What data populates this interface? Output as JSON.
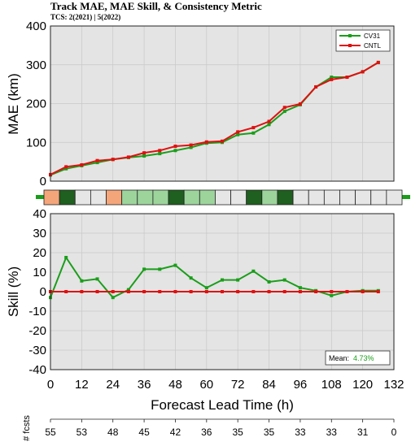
{
  "header": {
    "title": "Track MAE, MAE Skill, & Consistency Metric",
    "subtitle": "TCS: 2(2021) | 5(2022)"
  },
  "colors": {
    "cv31": "#1a9e1a",
    "cntl": "#e01010",
    "panel_bg": "#e4e4e4"
  },
  "chart_data": [
    {
      "type": "line",
      "xlabel": "",
      "ylabel": "MAE (km)",
      "xlim": [
        0,
        132
      ],
      "ylim": [
        0,
        400
      ],
      "yticks": [
        0,
        100,
        200,
        300,
        400
      ],
      "grid": true,
      "legend_position": "top-right",
      "x": [
        0,
        6,
        12,
        18,
        24,
        30,
        36,
        42,
        48,
        54,
        60,
        66,
        72,
        78,
        84,
        90,
        96,
        102,
        108,
        114,
        120,
        126
      ],
      "series": [
        {
          "name": "CV31",
          "values": [
            16,
            32,
            40,
            48,
            56,
            61,
            65,
            71,
            79,
            87,
            98,
            100,
            120,
            124,
            146,
            180,
            197,
            243,
            268,
            268,
            282,
            306
          ]
        },
        {
          "name": "CNTL",
          "values": [
            17,
            37,
            42,
            53,
            56,
            62,
            73,
            79,
            90,
            93,
            101,
            103,
            127,
            138,
            154,
            190,
            199,
            243,
            262,
            268,
            282,
            306
          ]
        }
      ]
    },
    {
      "type": "heatmap",
      "title": "Consistency Metric",
      "cells": [
        "orange",
        "darkgreen",
        "gray",
        "gray",
        "orange",
        "lightgreen",
        "lightgreen",
        "lightgreen",
        "darkgreen",
        "lightgreen",
        "lightgreen",
        "gray",
        "gray",
        "darkgreen",
        "lightgreen",
        "darkgreen",
        "gray",
        "gray",
        "gray",
        "gray",
        "gray",
        "gray",
        "gray"
      ]
    },
    {
      "type": "line",
      "xlabel": "Forecast Lead Time (h)",
      "ylabel": "Skill (%)",
      "xlim": [
        0,
        132
      ],
      "ylim": [
        -40,
        40
      ],
      "xticks": [
        0,
        12,
        24,
        36,
        48,
        60,
        72,
        84,
        96,
        108,
        120,
        132
      ],
      "yticks": [
        -40,
        -30,
        -20,
        -10,
        0,
        10,
        20,
        30,
        40
      ],
      "grid": true,
      "annotation": {
        "label": "Mean:",
        "value": "4.73%"
      },
      "x": [
        0,
        6,
        12,
        18,
        24,
        30,
        36,
        42,
        48,
        54,
        60,
        66,
        72,
        78,
        84,
        90,
        96,
        102,
        108,
        114,
        120,
        126
      ],
      "series": [
        {
          "name": "CV31",
          "values": [
            -3,
            17.5,
            5.5,
            6.5,
            -3,
            1,
            11.5,
            11.5,
            13.5,
            7,
            2,
            6,
            6,
            10.5,
            5,
            6,
            2,
            0.5,
            -2,
            0,
            0.5,
            0.5
          ]
        },
        {
          "name": "CNTL",
          "values": [
            0,
            0,
            0,
            0,
            0,
            0,
            0,
            0,
            0,
            0,
            0,
            0,
            0,
            0,
            0,
            0,
            0,
            0,
            0,
            0,
            0,
            0
          ]
        }
      ],
      "fcsts_label": "# fcsts",
      "fcsts_x": [
        0,
        12,
        24,
        36,
        48,
        60,
        72,
        84,
        96,
        108,
        120,
        132
      ],
      "fcsts_counts": [
        "55",
        "53",
        "48",
        "45",
        "42",
        "36",
        "35",
        "35",
        "33",
        "33",
        "31",
        "0"
      ]
    }
  ]
}
